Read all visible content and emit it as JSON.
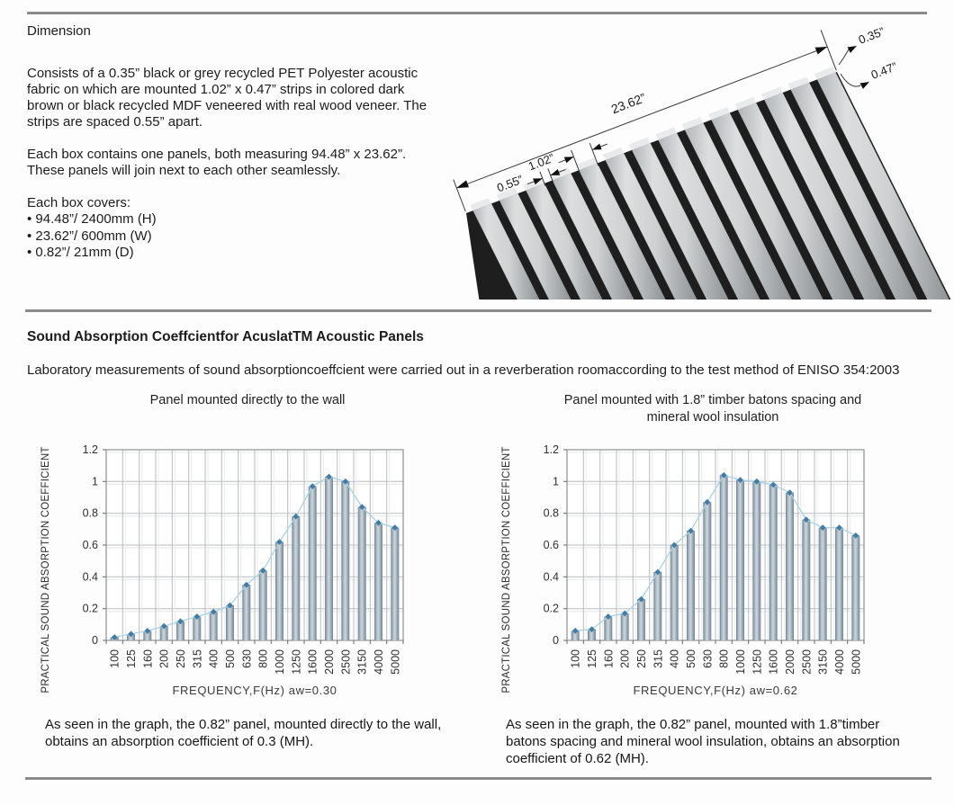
{
  "dimension_section": {
    "title": "Dimension",
    "para1": "Consists of a 0.35” black or grey recycled PET Polyester acoustic fabric on which are mounted 1.02” x 0.47” strips in colored dark brown or black recycled MDF veneered with real wood veneer. The strips are spaced 0.55” apart.",
    "para2": "Each box contains one panels, both measuring 94.48” x 23.62”. These panels will join next to each other seamlessly.",
    "covers_title": "Each box covers:",
    "covers": [
      "• 94.48”/ 2400mm (H)",
      "• 23.62”/ 600mm (W)",
      "• 0.82”/ 21mm (D)"
    ],
    "drawing_labels": {
      "panel_width": "23.62”",
      "slat_width": "1.02”",
      "slat_spacing": "0.55”",
      "fabric_thickness": "0.35”",
      "strip_thickness": "0.47”"
    }
  },
  "absorption_section": {
    "heading": "Sound Absorption Coeffcientfor AcuslatTM Acoustic Panels",
    "intro": "Laboratory measurements of sound absorptioncoeffcient were carried out in a reverberation roomaccording to the test method of ENISO 354:2003",
    "left": {
      "caption": "As seen in the graph, the 0.82” panel, mounted directly to the wall, obtains an absorption coefficient of 0.3 (MH)."
    },
    "right": {
      "caption": "As seen in the graph, the 0.82” panel, mounted with 1.8”timber batons spacing and mineral wool insulation, obtains an absorption coefficient of 0.62 (MH)."
    }
  },
  "chart_data": [
    {
      "type": "bar",
      "title": "Panel mounted directly to the wall",
      "categories": [
        "100",
        "125",
        "160",
        "200",
        "250",
        "315",
        "400",
        "500",
        "630",
        "800",
        "1000",
        "1250",
        "1600",
        "2000",
        "2500",
        "3150",
        "4000",
        "5000"
      ],
      "values": [
        0.02,
        0.04,
        0.06,
        0.09,
        0.12,
        0.15,
        0.18,
        0.22,
        0.35,
        0.44,
        0.62,
        0.78,
        0.97,
        1.03,
        1.0,
        0.84,
        0.74,
        0.71
      ],
      "xlabel": "FREQUENCY,F(Hz) aw=0.30",
      "ylabel": "PRACTICAL SOUND ABSORPTION COEFFICIENT",
      "ylim": [
        0,
        1.2
      ],
      "y_tick_step": 0.2,
      "grid": true,
      "legend": "none",
      "overlay_line": true,
      "bar_color_mid": "#cdd7dc",
      "bar_color_edge": "#6e8191",
      "line_color": "#a9d2e6",
      "marker_color": "#3f7ca8"
    },
    {
      "type": "bar",
      "title": "Panel mounted with 1.8” timber batons spacing and mineral wool insulation",
      "categories": [
        "100",
        "125",
        "160",
        "200",
        "250",
        "315",
        "400",
        "500",
        "630",
        "800",
        "1000",
        "1250",
        "1600",
        "2000",
        "2500",
        "3150",
        "4000",
        "5000"
      ],
      "values": [
        0.06,
        0.07,
        0.15,
        0.17,
        0.26,
        0.43,
        0.6,
        0.69,
        0.87,
        1.04,
        1.01,
        1.0,
        0.98,
        0.93,
        0.76,
        0.71,
        0.71,
        0.66
      ],
      "xlabel": "FREQUENCY,F(Hz) aw=0.62",
      "ylabel": "PRACTICAL SOUND ABSORPTION COEFFICIENT",
      "ylim": [
        0,
        1.2
      ],
      "y_tick_step": 0.2,
      "grid": true,
      "legend": "none",
      "overlay_line": true,
      "bar_color_mid": "#cdd7dc",
      "bar_color_edge": "#6e8191",
      "line_color": "#a9d2e6",
      "marker_color": "#3f7ca8"
    }
  ]
}
